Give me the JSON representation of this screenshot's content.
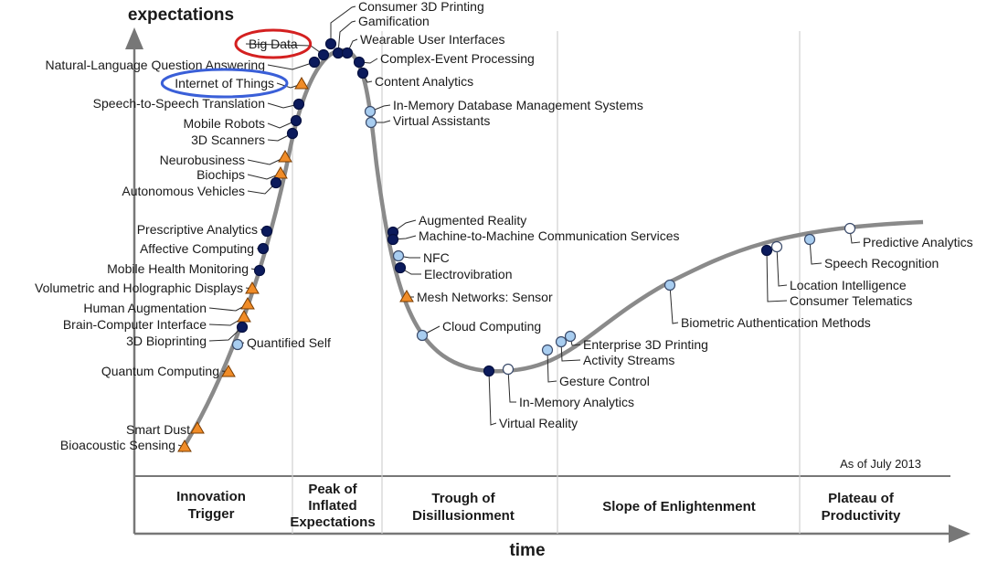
{
  "axes": {
    "y_title": "expectations",
    "x_title": "time"
  },
  "as_of": "As of July 2013",
  "phases": [
    {
      "lines": [
        "Innovation",
        "Trigger"
      ]
    },
    {
      "lines": [
        "Peak of",
        "Inflated",
        "Expectations"
      ]
    },
    {
      "lines": [
        "Trough of",
        "Disillusionment"
      ]
    },
    {
      "lines": [
        "Slope of Enlightenment"
      ]
    },
    {
      "lines": [
        "Plateau of",
        "Productivity"
      ]
    }
  ],
  "legend_marker_colors": {
    "navy_circle": "#0b1a5c",
    "light_blue_circle": "#a8cdf0",
    "white_circle": "#ffffff",
    "orange_triangle": "#f08c28"
  },
  "highlight_colors": {
    "big_data": "#d42020",
    "internet_of_things": "#3a5fd8"
  },
  "technologies": [
    {
      "name": "Consumer 3D Printing",
      "marker": "navy_circle"
    },
    {
      "name": "Gamification",
      "marker": "navy_circle"
    },
    {
      "name": "Wearable User Interfaces",
      "marker": "navy_circle"
    },
    {
      "name": "Big Data",
      "marker": "navy_circle",
      "highlight": "big_data"
    },
    {
      "name": "Complex-Event Processing",
      "marker": "navy_circle"
    },
    {
      "name": "Natural-Language Question Answering",
      "marker": "navy_circle"
    },
    {
      "name": "Content Analytics",
      "marker": "navy_circle"
    },
    {
      "name": "Internet of Things",
      "marker": "orange_triangle",
      "highlight": "internet_of_things"
    },
    {
      "name": "Speech-to-Speech Translation",
      "marker": "navy_circle"
    },
    {
      "name": "In-Memory Database Management Systems",
      "marker": "light_blue_circle"
    },
    {
      "name": "Virtual Assistants",
      "marker": "light_blue_circle"
    },
    {
      "name": "Mobile Robots",
      "marker": "navy_circle"
    },
    {
      "name": "3D Scanners",
      "marker": "navy_circle"
    },
    {
      "name": "Neurobusiness",
      "marker": "orange_triangle"
    },
    {
      "name": "Biochips",
      "marker": "orange_triangle"
    },
    {
      "name": "Autonomous Vehicles",
      "marker": "navy_circle"
    },
    {
      "name": "Augmented Reality",
      "marker": "navy_circle"
    },
    {
      "name": "Machine-to-Machine Communication Services",
      "marker": "navy_circle"
    },
    {
      "name": "Prescriptive Analytics",
      "marker": "navy_circle"
    },
    {
      "name": "Affective Computing",
      "marker": "navy_circle"
    },
    {
      "name": "Mobile Health Monitoring",
      "marker": "navy_circle"
    },
    {
      "name": "NFC",
      "marker": "light_blue_circle"
    },
    {
      "name": "Electrovibration",
      "marker": "navy_circle"
    },
    {
      "name": "Volumetric and Holographic Displays",
      "marker": "orange_triangle"
    },
    {
      "name": "Mesh Networks: Sensor",
      "marker": "orange_triangle"
    },
    {
      "name": "Human Augmentation",
      "marker": "orange_triangle"
    },
    {
      "name": "Brain-Computer Interface",
      "marker": "orange_triangle"
    },
    {
      "name": "3D Bioprinting",
      "marker": "navy_circle"
    },
    {
      "name": "Quantified Self",
      "marker": "light_blue_circle"
    },
    {
      "name": "Cloud Computing",
      "marker": "light_blue_circle"
    },
    {
      "name": "Quantum Computing",
      "marker": "orange_triangle"
    },
    {
      "name": "Smart Dust",
      "marker": "orange_triangle"
    },
    {
      "name": "Bioacoustic Sensing",
      "marker": "orange_triangle"
    },
    {
      "name": "Virtual Reality",
      "marker": "navy_circle"
    },
    {
      "name": "In-Memory Analytics",
      "marker": "white_circle"
    },
    {
      "name": "Gesture Control",
      "marker": "light_blue_circle"
    },
    {
      "name": "Activity Streams",
      "marker": "light_blue_circle"
    },
    {
      "name": "Enterprise 3D Printing",
      "marker": "light_blue_circle"
    },
    {
      "name": "Biometric Authentication Methods",
      "marker": "light_blue_circle"
    },
    {
      "name": "Consumer Telematics",
      "marker": "navy_circle"
    },
    {
      "name": "Location Intelligence",
      "marker": "white_circle"
    },
    {
      "name": "Speech Recognition",
      "marker": "light_blue_circle"
    },
    {
      "name": "Predictive Analytics",
      "marker": "white_circle"
    }
  ]
}
